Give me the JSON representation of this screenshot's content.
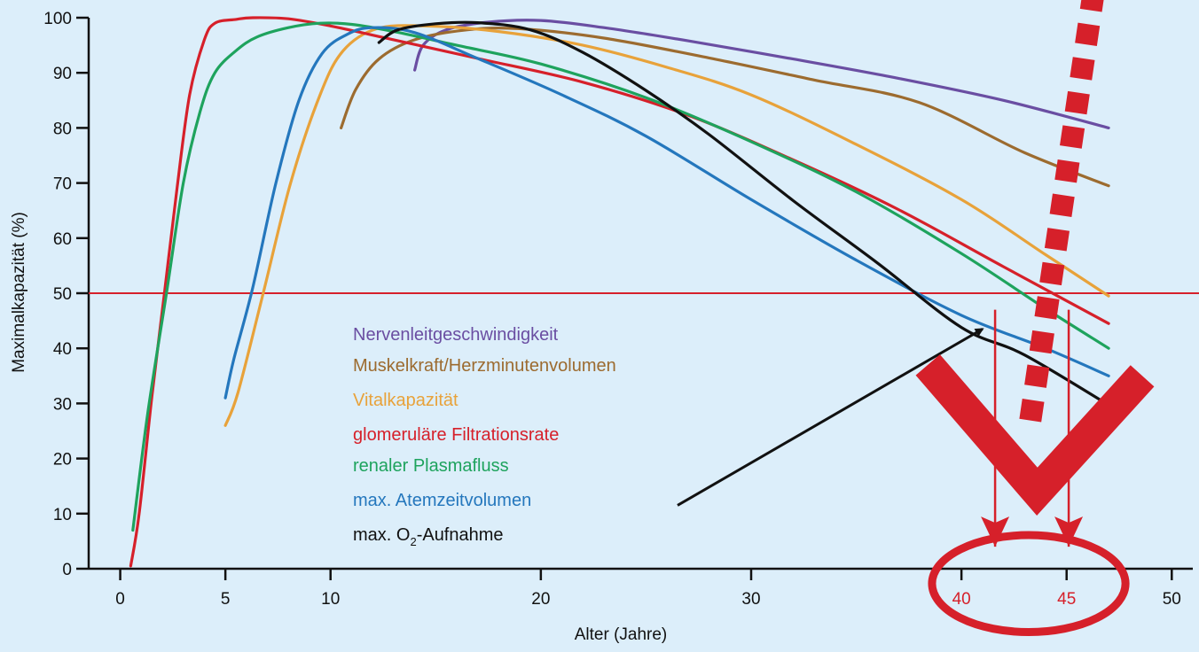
{
  "chart_data": {
    "type": "line",
    "title": "",
    "xlabel": "Alter (Jahre)",
    "ylabel": "Maximalkapazität (%)",
    "xlim": [
      -1.5,
      51
    ],
    "ylim": [
      0,
      100
    ],
    "xticks": [
      0,
      5,
      10,
      20,
      30,
      40,
      45,
      50
    ],
    "xtick_labels": [
      "0",
      "5",
      "10",
      "20",
      "30",
      "40",
      "45",
      "50"
    ],
    "xtick_highlight": [
      "40",
      "45"
    ],
    "yticks": [
      0,
      10,
      20,
      30,
      40,
      50,
      60,
      70,
      80,
      90,
      100
    ],
    "ytick_labels": [
      "0",
      "10",
      "20",
      "30",
      "40",
      "50",
      "60",
      "70",
      "80",
      "90",
      "100"
    ],
    "grid": false,
    "legend_position": "center-left",
    "reference_line": {
      "y": 50,
      "color": "#d6202a"
    },
    "series": [
      {
        "name": "Nervenleitgeschwindigkeit",
        "color": "#6a4ea2",
        "x": [
          14,
          14.4,
          15.5,
          17.5,
          20,
          23,
          27,
          32,
          37,
          42,
          47
        ],
        "y": [
          90.5,
          95,
          97.8,
          99.2,
          99.5,
          98.2,
          95.8,
          92.5,
          89,
          85,
          80
        ]
      },
      {
        "name": "Muskelkraft/Herzminutenvolumen",
        "color": "#9c6b2f",
        "x": [
          10.5,
          11.2,
          12.3,
          14,
          16.5,
          19,
          23,
          28,
          33,
          38,
          43,
          47
        ],
        "y": [
          80,
          87,
          92.5,
          96,
          97.8,
          98,
          96.3,
          92.7,
          88.7,
          84.6,
          75.5,
          69.5
        ]
      },
      {
        "name": "Vitalkapazität",
        "color": "#e8a23a",
        "x": [
          5,
          5.6,
          6.8,
          8.1,
          9.5,
          10.6,
          12.2,
          14.5,
          18,
          22,
          26,
          30,
          35,
          40,
          44,
          47
        ],
        "y": [
          26,
          32,
          50,
          70,
          86,
          94,
          98,
          98.5,
          97.5,
          95,
          91,
          86,
          77,
          67,
          57,
          49.5
        ]
      },
      {
        "name": "glomeruläre Filtrationsrate",
        "color": "#d6202a",
        "x": [
          0.5,
          0.9,
          1.5,
          2.1,
          2.7,
          3.3,
          4,
          4.5,
          5.5,
          6.3,
          8,
          10,
          13,
          17,
          22,
          27,
          32,
          37,
          42,
          47
        ],
        "y": [
          0.5,
          10,
          31,
          50,
          69,
          86,
          96,
          99,
          99.7,
          100,
          99.8,
          98.5,
          96,
          92.6,
          88.3,
          82.3,
          74.2,
          65.2,
          54.8,
          44.5
        ]
      },
      {
        "name": "renaler Plasmafluss",
        "color": "#1ea35d",
        "x": [
          0.6,
          1.3,
          2.2,
          3,
          3.8,
          4.5,
          5.5,
          6.5,
          8,
          9.5,
          11,
          13,
          16,
          20,
          25,
          30,
          35,
          40,
          44,
          47
        ],
        "y": [
          7,
          28,
          50,
          70,
          83,
          90,
          94,
          96.5,
          98.2,
          99,
          98.8,
          97.5,
          95,
          91.6,
          85.5,
          77.5,
          68.4,
          57.2,
          47.2,
          40
        ]
      },
      {
        "name": "max. Atemzeitvolumen",
        "color": "#2477bd",
        "x": [
          5,
          5.4,
          6.3,
          7.4,
          8.5,
          9.6,
          10.8,
          12,
          14,
          17,
          21,
          25,
          30,
          35,
          40,
          44,
          47
        ],
        "y": [
          31,
          38,
          51,
          70,
          85,
          93.5,
          97,
          98.2,
          97.3,
          92.6,
          86,
          78.5,
          67,
          56,
          46,
          40,
          35
        ]
      },
      {
        "name": "max. O₂-Aufnahme",
        "color": "#111111",
        "x": [
          12.3,
          13.2,
          15,
          17,
          19.5,
          22,
          25,
          28,
          32,
          36,
          40,
          43,
          47.3
        ],
        "y": [
          95.5,
          97.8,
          98.9,
          99.1,
          97.8,
          93.7,
          86.8,
          78.8,
          66.8,
          55.5,
          43.8,
          38.8,
          29
        ]
      }
    ],
    "legend_items": [
      {
        "color": "#6a4ea2",
        "label": "Nervenleitgeschwindigkeit"
      },
      {
        "color": "#9c6b2f",
        "label": "Muskelkraft/Herzminutenvolumen"
      },
      {
        "color": "#e8a23a",
        "label": "Vitalkapazität"
      },
      {
        "color": "#d6202a",
        "label": "glomeruläre Filtrationsrate"
      },
      {
        "color": "#1ea35d",
        "label": "renaler Plasmafluss"
      },
      {
        "color": "#2477bd",
        "label": "max. Atemzeitvolumen"
      },
      {
        "color": "#111111",
        "label_main": "max. O",
        "label_sub": "2",
        "label_rest": "-Aufnahme"
      }
    ],
    "annotations": [
      {
        "type": "arrow",
        "color": "#111111",
        "from": [
          26.5,
          11.5
        ],
        "to": [
          41,
          43.5
        ]
      },
      {
        "type": "arrow",
        "color": "#d6202a",
        "from": [
          41.6,
          47
        ],
        "to": [
          41.6,
          4
        ]
      },
      {
        "type": "arrow",
        "color": "#d6202a",
        "from": [
          45.1,
          47
        ],
        "to": [
          45.1,
          4
        ]
      },
      {
        "type": "ellipse",
        "color": "#d6202a",
        "center": [
          43.2,
          -2.7
        ],
        "rx": 4.6,
        "ry": 8.8
      },
      {
        "type": "dashed-stroke",
        "color": "#d6202a",
        "from": [
          46.3,
          105
        ],
        "to": [
          43.2,
          25
        ]
      },
      {
        "type": "checkmark",
        "color": "#d6202a",
        "points": [
          [
            38.4,
            37
          ],
          [
            43.6,
            14
          ],
          [
            48.6,
            35
          ]
        ]
      }
    ]
  }
}
